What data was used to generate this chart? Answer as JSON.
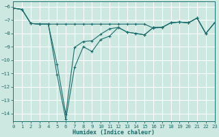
{
  "xlabel": "Humidex (Indice chaleur)",
  "background_color": "#cce8e0",
  "grid_color": "#b0d8cc",
  "line_color": "#1a6b6b",
  "xlim": [
    0,
    23
  ],
  "ylim": [
    -14.6,
    -5.6
  ],
  "xticks": [
    0,
    1,
    2,
    3,
    4,
    5,
    6,
    7,
    8,
    9,
    10,
    11,
    12,
    13,
    14,
    15,
    16,
    17,
    18,
    19,
    20,
    21,
    22,
    23
  ],
  "yticks": [
    -6,
    -7,
    -8,
    -9,
    -10,
    -11,
    -12,
    -13,
    -14
  ],
  "line1_x": [
    0,
    1,
    2,
    3,
    4,
    5,
    6,
    7,
    8,
    9,
    10,
    11,
    12,
    13,
    14,
    15,
    16,
    17,
    18,
    19,
    20,
    21,
    22,
    23
  ],
  "line1_y": [
    -6.1,
    -6.2,
    -7.25,
    -7.3,
    -7.3,
    -7.3,
    -7.3,
    -7.3,
    -7.3,
    -7.3,
    -7.3,
    -7.3,
    -7.3,
    -7.3,
    -7.3,
    -7.3,
    -7.6,
    -7.55,
    -7.2,
    -7.15,
    -7.2,
    -6.85,
    -8.0,
    -7.2
  ],
  "line2_x": [
    0,
    1,
    2,
    3,
    4,
    5,
    6,
    7,
    8,
    9,
    10,
    11,
    12,
    13,
    14,
    15,
    16,
    17,
    18,
    19,
    20,
    21,
    22,
    23
  ],
  "line2_y": [
    -6.1,
    -6.2,
    -7.25,
    -7.3,
    -7.3,
    -10.3,
    -14.05,
    -9.05,
    -8.6,
    -8.55,
    -8.05,
    -7.65,
    -7.55,
    -7.9,
    -8.0,
    -8.1,
    -7.55,
    -7.55,
    -7.2,
    -7.15,
    -7.2,
    -6.85,
    -8.0,
    -7.2
  ],
  "line3_x": [
    0,
    1,
    2,
    3,
    4,
    5,
    6,
    7,
    8,
    9,
    10,
    11,
    12,
    13,
    14,
    15,
    16,
    17,
    18,
    19,
    20,
    21,
    22,
    23
  ],
  "line3_y": [
    -6.1,
    -6.2,
    -7.25,
    -7.3,
    -7.3,
    -11.1,
    -14.45,
    -10.55,
    -9.0,
    -9.35,
    -8.45,
    -8.2,
    -7.55,
    -7.9,
    -8.0,
    -8.1,
    -7.55,
    -7.55,
    -7.2,
    -7.15,
    -7.2,
    -6.85,
    -8.0,
    -7.2
  ]
}
